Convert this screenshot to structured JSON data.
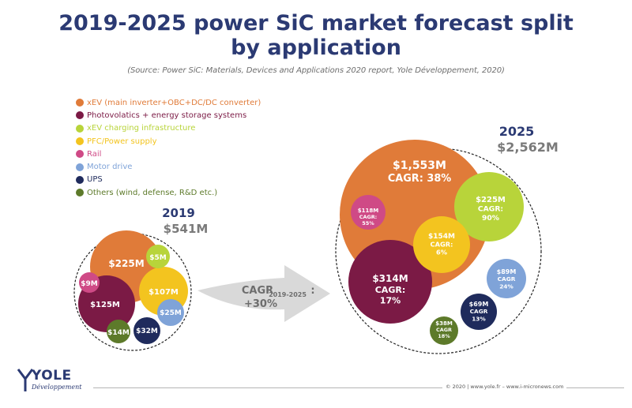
{
  "title": "2019-2025 power SiC market forecast split by application",
  "title_line1": "2019-2025 power SiC market forecast split",
  "title_line2": "by application",
  "source": "(Source: Power SiC: Materials, Devices and Applications 2020 report, Yole Développement, 2020)",
  "legend": [
    {
      "label": "xEV (main inverter+OBC+DC/DC converter)",
      "color": "#e07b39"
    },
    {
      "label": "Photovolatics + energy storage systems",
      "color": "#7b1a45"
    },
    {
      "label": "xEV charging infrastructure",
      "color": "#b8d43a"
    },
    {
      "label": "PFC/Power supply",
      "color": "#f3c41f"
    },
    {
      "label": "Rail",
      "color": "#cf4a86"
    },
    {
      "label": "Motor drive",
      "color": "#7fa3d8"
    },
    {
      "label": "UPS",
      "color": "#1f2b5c"
    },
    {
      "label": "Others (wind, defense, R&D etc.)",
      "color": "#5d7a2a"
    }
  ],
  "year_2019": {
    "year": "2019",
    "total": "$541M"
  },
  "year_2025": {
    "year": "2025",
    "total": "$2,562M"
  },
  "arrow": {
    "label_main": "CAGR",
    "label_sub": "2019-2025",
    "label_colon": ":",
    "value": "+30%"
  },
  "chart_data": {
    "type": "bubble",
    "title": "2019-2025 power SiC market forecast split by application",
    "groups": [
      {
        "year": "2019",
        "total_musd": 541,
        "segments": [
          {
            "category": "xEV (main inverter+OBC+DC/DC converter)",
            "value_musd": 225,
            "label": "$225M"
          },
          {
            "category": "Photovolatics + energy storage systems",
            "value_musd": 125,
            "label": "$125M"
          },
          {
            "category": "PFC/Power supply",
            "value_musd": 107,
            "label": "$107M"
          },
          {
            "category": "UPS",
            "value_musd": 32,
            "label": "$32M"
          },
          {
            "category": "Motor drive",
            "value_musd": 25,
            "label": "$25M"
          },
          {
            "category": "Others (wind, defense, R&D etc.)",
            "value_musd": 14,
            "label": "$14M"
          },
          {
            "category": "Rail",
            "value_musd": 9,
            "label": "$9M"
          },
          {
            "category": "xEV charging infrastructure",
            "value_musd": 5,
            "label": "$5M"
          }
        ]
      },
      {
        "year": "2025",
        "total_musd": 2562,
        "segments": [
          {
            "category": "xEV (main inverter+OBC+DC/DC converter)",
            "value_musd": 1553,
            "label": "$1,553M",
            "cagr_pct": 38,
            "cagr_text": "CAGR: 38%"
          },
          {
            "category": "Photovolatics + energy storage systems",
            "value_musd": 314,
            "label": "$314M",
            "cagr_pct": 17,
            "cagr_text": "CAGR:\n17%"
          },
          {
            "category": "xEV charging infrastructure",
            "value_musd": 225,
            "label": "$225M",
            "cagr_pct": 90,
            "cagr_text": "CAGR:\n90%"
          },
          {
            "category": "PFC/Power supply",
            "value_musd": 154,
            "label": "$154M",
            "cagr_pct": 6,
            "cagr_text": "CAGR:\n6%"
          },
          {
            "category": "Rail",
            "value_musd": 118,
            "label": "$118M",
            "cagr_pct": 55,
            "cagr_text": "CAGR:\n55%"
          },
          {
            "category": "Motor drive",
            "value_musd": 89,
            "label": "$89M",
            "cagr_pct": 24,
            "cagr_text": "CAGR\n24%"
          },
          {
            "category": "UPS",
            "value_musd": 69,
            "label": "$69M",
            "cagr_pct": 13,
            "cagr_text": "CAGR\n13%"
          },
          {
            "category": "Others (wind, defense, R&D etc.)",
            "value_musd": 38,
            "label": "$38M",
            "cagr_pct": 18,
            "cagr_text": "CAGR\n18%"
          }
        ]
      }
    ],
    "overall_cagr": "+30%"
  },
  "footer": {
    "copyright": "© 2020 | www.yole.fr – www.i-micronews.com"
  },
  "logo": {
    "name": "YOLE",
    "sub": "Développement"
  }
}
